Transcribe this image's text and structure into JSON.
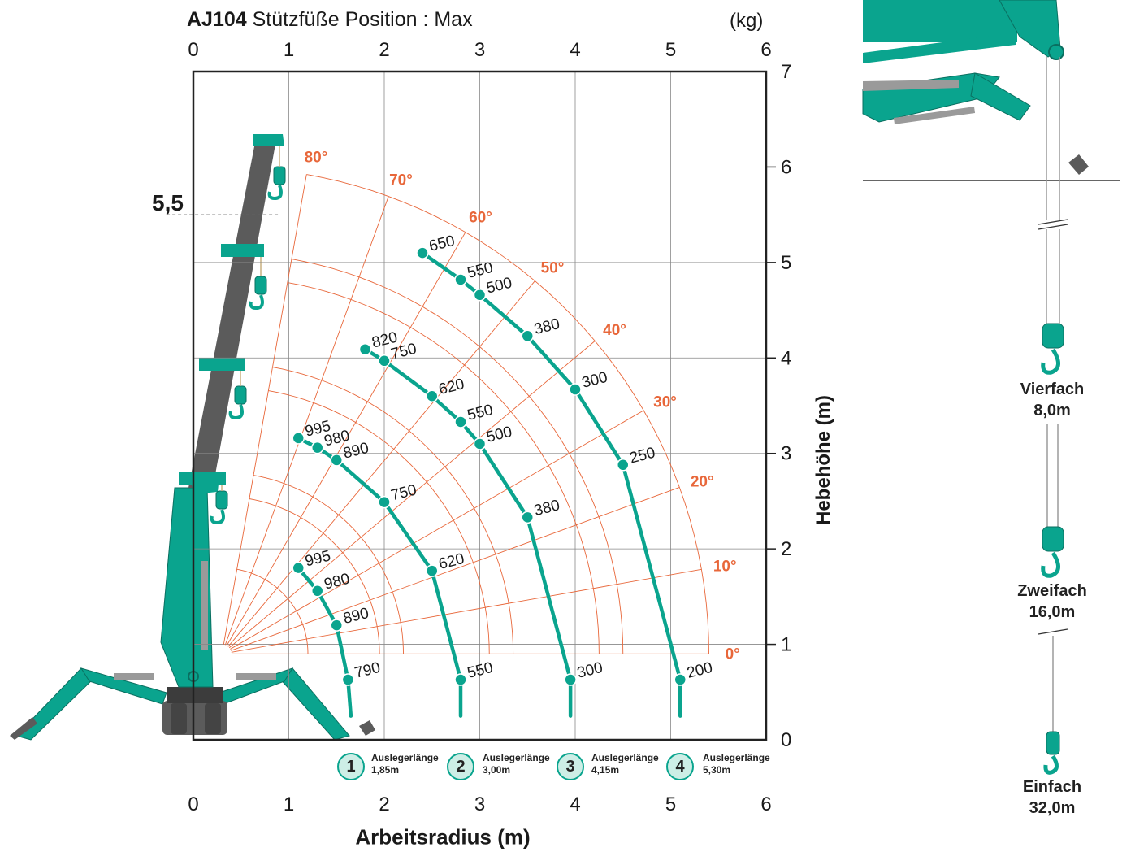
{
  "title": {
    "model": "AJ104",
    "subtitle": "Stützfüße Position : Max"
  },
  "unit_label": "(kg)",
  "annotation_height": "5,5",
  "colors": {
    "teal": "#0aa48e",
    "orange": "#e8673a",
    "grey": "#5b5b5b",
    "grid": "#b9b9b9"
  },
  "chart_data": {
    "type": "scatter",
    "xlabel": "Arbeitsradius (m)",
    "ylabel": "Hebehöhe (m)",
    "xlim": [
      0,
      6
    ],
    "ylim": [
      0,
      7
    ],
    "x_ticks": [
      "0",
      "1",
      "2",
      "3",
      "4",
      "5",
      "6"
    ],
    "y_ticks": [
      "0",
      "1",
      "2",
      "3",
      "4",
      "5",
      "6",
      "7"
    ],
    "pivot": [
      0.3,
      0.9
    ],
    "angle_labels": [
      "0°",
      "10°",
      "20°",
      "30°",
      "40°",
      "50°",
      "60°",
      "70°",
      "80°"
    ],
    "series": [
      {
        "boom_label": "1",
        "boom_text": "Auslegerlänge",
        "boom_length": "1,85m",
        "max_radius": 1.65,
        "points": [
          {
            "x": 1.62,
            "y": 0.63,
            "load": "790"
          },
          {
            "x": 1.5,
            "y": 1.2,
            "load": "890"
          },
          {
            "x": 1.3,
            "y": 1.56,
            "load": "980"
          },
          {
            "x": 1.1,
            "y": 1.8,
            "load": "995"
          }
        ]
      },
      {
        "boom_label": "2",
        "boom_text": "Auslegerlänge",
        "boom_length": "3,00m",
        "max_radius": 2.8,
        "points": [
          {
            "x": 2.8,
            "y": 0.63,
            "load": "550"
          },
          {
            "x": 2.5,
            "y": 1.77,
            "load": "620"
          },
          {
            "x": 2.0,
            "y": 2.49,
            "load": "750"
          },
          {
            "x": 1.5,
            "y": 2.93,
            "load": "890"
          },
          {
            "x": 1.3,
            "y": 3.06,
            "load": "980"
          },
          {
            "x": 1.1,
            "y": 3.16,
            "load": "995"
          }
        ]
      },
      {
        "boom_label": "3",
        "boom_text": "Auslegerlänge",
        "boom_length": "4,15m",
        "max_radius": 3.95,
        "points": [
          {
            "x": 3.95,
            "y": 0.63,
            "load": "300"
          },
          {
            "x": 3.5,
            "y": 2.33,
            "load": "380"
          },
          {
            "x": 3.0,
            "y": 3.1,
            "load": "500"
          },
          {
            "x": 2.8,
            "y": 3.33,
            "load": "550"
          },
          {
            "x": 2.5,
            "y": 3.6,
            "load": "620"
          },
          {
            "x": 2.0,
            "y": 3.97,
            "load": "750"
          },
          {
            "x": 1.8,
            "y": 4.09,
            "load": "820"
          }
        ]
      },
      {
        "boom_label": "4",
        "boom_text": "Auslegerlänge",
        "boom_length": "5,30m",
        "max_radius": 5.1,
        "points": [
          {
            "x": 5.1,
            "y": 0.63,
            "load": "200"
          },
          {
            "x": 4.5,
            "y": 2.88,
            "load": "250"
          },
          {
            "x": 4.0,
            "y": 3.67,
            "load": "300"
          },
          {
            "x": 3.5,
            "y": 4.23,
            "load": "380"
          },
          {
            "x": 3.0,
            "y": 4.66,
            "load": "500"
          },
          {
            "x": 2.8,
            "y": 4.82,
            "load": "550"
          },
          {
            "x": 2.4,
            "y": 5.1,
            "load": "650"
          }
        ]
      }
    ]
  },
  "hook_modes": [
    {
      "label": "Vierfach",
      "length": "8,0m"
    },
    {
      "label": "Zweifach",
      "length": "16,0m"
    },
    {
      "label": "Einfach",
      "length": "32,0m"
    }
  ]
}
